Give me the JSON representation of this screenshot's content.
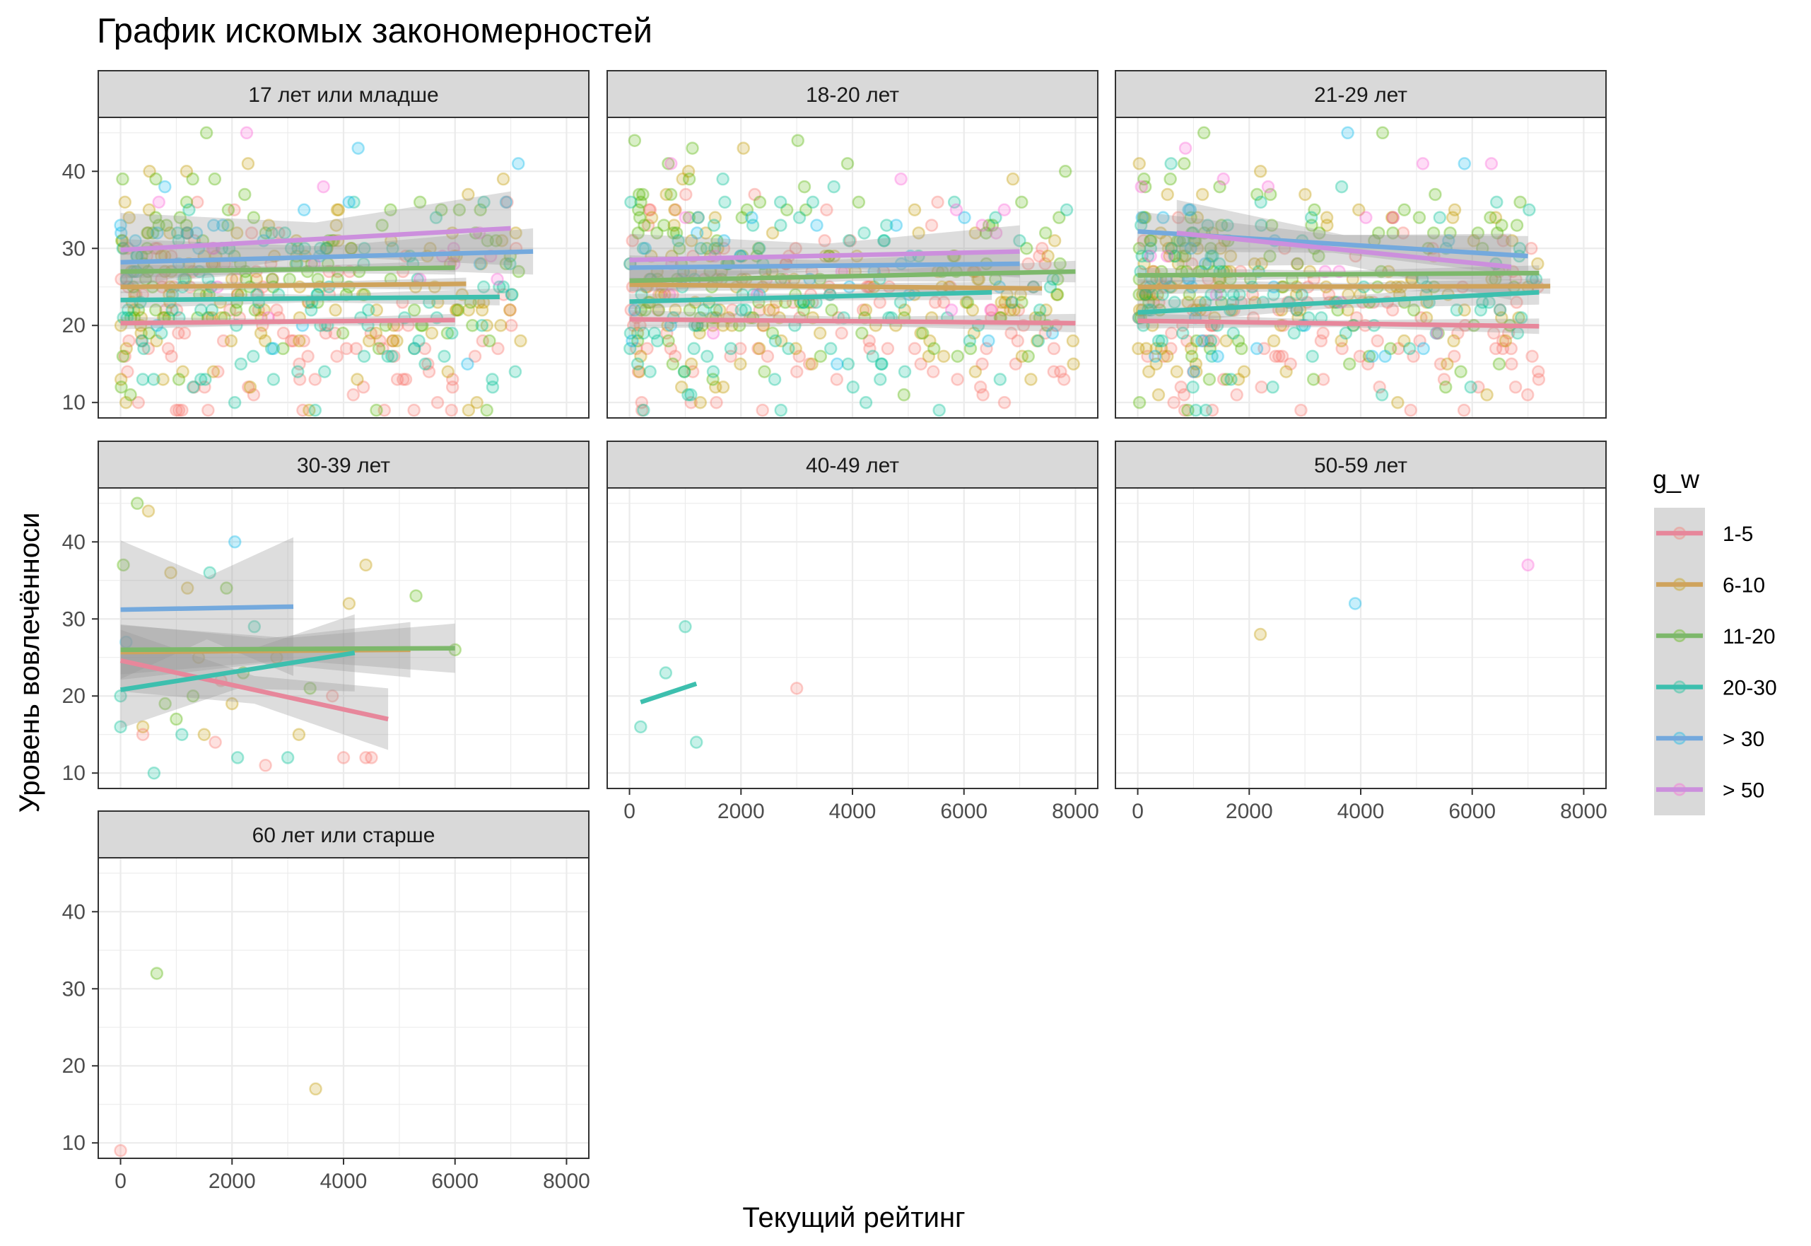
{
  "chart_data": {
    "type": "scatter",
    "title": "График искомых закономерностей",
    "xlabel": "Текущий рейтинг",
    "ylabel": "Уровень вовлечённоси",
    "xlim": [
      -400,
      8400
    ],
    "ylim": [
      8,
      47
    ],
    "x_ticks": [
      0,
      2000,
      4000,
      6000,
      8000
    ],
    "y_ticks": [
      10,
      20,
      30,
      40
    ],
    "x_tick_labels": [
      "0",
      "2000",
      "4000",
      "6000",
      "8000"
    ],
    "y_tick_labels": [
      "10",
      "20",
      "30",
      "40"
    ],
    "grid": true,
    "legend": {
      "title": "g_w",
      "position": "right",
      "entries": [
        "1-5",
        "6-10",
        "11-20",
        "20-30",
        "> 30",
        "> 50"
      ]
    },
    "colors": {
      "1-5": "#F8766D",
      "6-10": "#C49A00",
      "11-20": "#53B400",
      "20-30": "#00C094",
      "> 30": "#00B6EB",
      "> 50": "#FB61D7",
      "line_1-5": "#E7879B",
      "line_6-10": "#CFA35C",
      "line_11-20": "#7DB86B",
      "line_20-30": "#3DBFAE",
      "line_> 30": "#74A9DD",
      "line_> 50": "#CC8FDD"
    },
    "panels": [
      {
        "label": "17 лет или младше",
        "density": "dense",
        "trend_lines": [
          {
            "group": "1-5",
            "x": [
              0,
              6000
            ],
            "y": [
              20.3,
              20.7
            ],
            "band": 0.8
          },
          {
            "group": "6-10",
            "x": [
              0,
              6200
            ],
            "y": [
              25.0,
              25.4
            ],
            "band": 0.8
          },
          {
            "group": "11-20",
            "x": [
              0,
              6000
            ],
            "y": [
              27.0,
              27.5
            ],
            "band": 0.9
          },
          {
            "group": "20-30",
            "x": [
              0,
              6800
            ],
            "y": [
              23.3,
              23.7
            ],
            "band": 1.1
          },
          {
            "group": "> 30",
            "x": [
              0,
              7400
            ],
            "y": [
              28.2,
              29.6
            ],
            "band": 3.0
          },
          {
            "group": "> 50",
            "x": [
              0,
              7000
            ],
            "y": [
              29.8,
              32.6
            ],
            "band": 4.8
          }
        ]
      },
      {
        "label": "18-20 лет",
        "density": "dense",
        "trend_lines": [
          {
            "group": "1-5",
            "x": [
              0,
              8000
            ],
            "y": [
              20.8,
              20.3
            ],
            "band": 1.2
          },
          {
            "group": "6-10",
            "x": [
              0,
              7400
            ],
            "y": [
              25.3,
              24.8
            ],
            "band": 0.9
          },
          {
            "group": "11-20",
            "x": [
              0,
              8000
            ],
            "y": [
              25.8,
              27.0
            ],
            "band": 1.4
          },
          {
            "group": "20-30",
            "x": [
              0,
              6500
            ],
            "y": [
              23.1,
              24.3
            ],
            "band": 1.0
          },
          {
            "group": "> 30",
            "x": [
              0,
              7000
            ],
            "y": [
              27.5,
              28.0
            ],
            "band": 1.6
          },
          {
            "group": "> 50",
            "x": [
              0,
              7000
            ],
            "y": [
              28.5,
              29.6
            ],
            "band": 3.4
          }
        ]
      },
      {
        "label": "21-29 лет",
        "density": "dense",
        "trend_lines": [
          {
            "group": "1-5",
            "x": [
              0,
              7200
            ],
            "y": [
              20.6,
              19.9
            ],
            "band": 1.0
          },
          {
            "group": "6-10",
            "x": [
              0,
              7400
            ],
            "y": [
              25.0,
              25.1
            ],
            "band": 1.0
          },
          {
            "group": "11-20",
            "x": [
              0,
              7200
            ],
            "y": [
              26.5,
              26.8
            ],
            "band": 1.0
          },
          {
            "group": "20-30",
            "x": [
              0,
              7200
            ],
            "y": [
              21.7,
              24.3
            ],
            "band": 1.6
          },
          {
            "group": "> 30",
            "x": [
              0,
              7000
            ],
            "y": [
              32.2,
              29.0
            ],
            "band": 2.6
          },
          {
            "group": "> 50",
            "x": [
              700,
              6700
            ],
            "y": [
              32.0,
              27.6
            ],
            "band": 4.3
          }
        ]
      },
      {
        "label": "30-39 лет",
        "density": "sparse",
        "trend_lines": [
          {
            "group": "1-5",
            "x": [
              0,
              4800
            ],
            "y": [
              24.6,
              17.0
            ],
            "band": 4.0
          },
          {
            "group": "6-10",
            "x": [
              0,
              5200
            ],
            "y": [
              25.7,
              26.0
            ],
            "band": 3.6
          },
          {
            "group": "11-20",
            "x": [
              0,
              6000
            ],
            "y": [
              26.0,
              26.2
            ],
            "band": 3.2
          },
          {
            "group": "20-30",
            "x": [
              0,
              4200
            ],
            "y": [
              20.8,
              25.6
            ],
            "band": 5.0
          },
          {
            "group": "> 30",
            "x": [
              0,
              3100
            ],
            "y": [
              31.2,
              31.6
            ],
            "band": 9.0
          }
        ]
      },
      {
        "label": "40-49 лет",
        "density": "sparse",
        "trend_lines": [
          {
            "group": "20-30",
            "x": [
              200,
              1200
            ],
            "y": [
              19.2,
              21.6
            ],
            "band": 0
          }
        ]
      },
      {
        "label": "50-59 лет",
        "density": "sparse",
        "trend_lines": []
      },
      {
        "label": "60 лет или старше",
        "density": "sparse",
        "trend_lines": []
      }
    ],
    "points_sparse": {
      "30-39 лет": [
        {
          "x": 50,
          "y": 37,
          "g": "11-20"
        },
        {
          "x": 300,
          "y": 45,
          "g": "11-20"
        },
        {
          "x": 500,
          "y": 44,
          "g": "6-10"
        },
        {
          "x": 0,
          "y": 20,
          "g": "20-30"
        },
        {
          "x": 0,
          "y": 16,
          "g": "20-30"
        },
        {
          "x": 100,
          "y": 27,
          "g": "> 30"
        },
        {
          "x": 400,
          "y": 16,
          "g": "6-10"
        },
        {
          "x": 400,
          "y": 15,
          "g": "1-5"
        },
        {
          "x": 600,
          "y": 10,
          "g": "20-30"
        },
        {
          "x": 800,
          "y": 19,
          "g": "11-20"
        },
        {
          "x": 900,
          "y": 36,
          "g": "6-10"
        },
        {
          "x": 1000,
          "y": 17,
          "g": "11-20"
        },
        {
          "x": 1100,
          "y": 15,
          "g": "20-30"
        },
        {
          "x": 1200,
          "y": 34,
          "g": "6-10"
        },
        {
          "x": 1300,
          "y": 20,
          "g": "11-20"
        },
        {
          "x": 1400,
          "y": 25,
          "g": "6-10"
        },
        {
          "x": 1500,
          "y": 15,
          "g": "6-10"
        },
        {
          "x": 1600,
          "y": 36,
          "g": "20-30"
        },
        {
          "x": 1700,
          "y": 14,
          "g": "1-5"
        },
        {
          "x": 1800,
          "y": 22,
          "g": "1-5"
        },
        {
          "x": 1900,
          "y": 34,
          "g": "11-20"
        },
        {
          "x": 2000,
          "y": 19,
          "g": "6-10"
        },
        {
          "x": 2050,
          "y": 40,
          "g": "> 30"
        },
        {
          "x": 2100,
          "y": 12,
          "g": "20-30"
        },
        {
          "x": 2200,
          "y": 23,
          "g": "11-20"
        },
        {
          "x": 2400,
          "y": 29,
          "g": "20-30"
        },
        {
          "x": 2600,
          "y": 11,
          "g": "1-5"
        },
        {
          "x": 2800,
          "y": 25,
          "g": "6-10"
        },
        {
          "x": 3000,
          "y": 12,
          "g": "20-30"
        },
        {
          "x": 3200,
          "y": 15,
          "g": "6-10"
        },
        {
          "x": 3400,
          "y": 21,
          "g": "11-20"
        },
        {
          "x": 3800,
          "y": 20,
          "g": "1-5"
        },
        {
          "x": 4000,
          "y": 12,
          "g": "1-5"
        },
        {
          "x": 4100,
          "y": 32,
          "g": "6-10"
        },
        {
          "x": 4400,
          "y": 37,
          "g": "6-10"
        },
        {
          "x": 4400,
          "y": 12,
          "g": "1-5"
        },
        {
          "x": 4500,
          "y": 12,
          "g": "1-5"
        },
        {
          "x": 5300,
          "y": 33,
          "g": "11-20"
        },
        {
          "x": 6000,
          "y": 26,
          "g": "11-20"
        }
      ],
      "40-49 лет": [
        {
          "x": 200,
          "y": 16,
          "g": "20-30"
        },
        {
          "x": 650,
          "y": 23,
          "g": "20-30"
        },
        {
          "x": 1000,
          "y": 29,
          "g": "20-30"
        },
        {
          "x": 1200,
          "y": 14,
          "g": "20-30"
        },
        {
          "x": 3000,
          "y": 21,
          "g": "1-5"
        }
      ],
      "50-59 лет": [
        {
          "x": 2200,
          "y": 28,
          "g": "6-10"
        },
        {
          "x": 3900,
          "y": 32,
          "g": "> 30"
        },
        {
          "x": 7000,
          "y": 37,
          "g": "> 50"
        }
      ],
      "60 лет или старше": [
        {
          "x": 0,
          "y": 9,
          "g": "1-5"
        },
        {
          "x": 650,
          "y": 32,
          "g": "11-20"
        },
        {
          "x": 3500,
          "y": 17,
          "g": "6-10"
        }
      ]
    }
  }
}
